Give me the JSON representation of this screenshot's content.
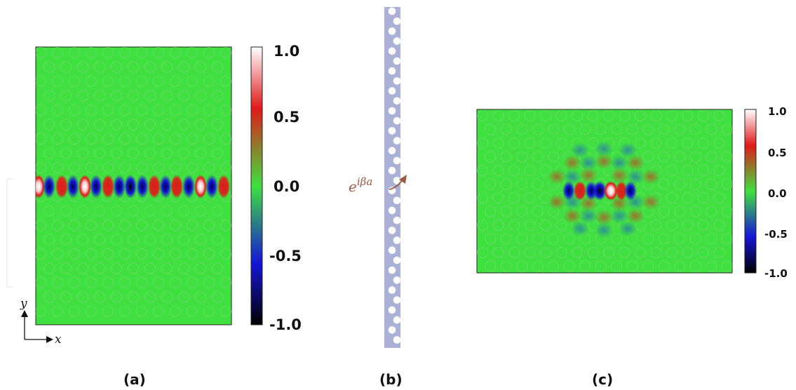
{
  "panels": {
    "a": {
      "label": "(a)",
      "axis_y": "y",
      "axis_x": "x",
      "colorbar_ticks": [
        "1.0",
        "0.5",
        "0.0",
        "-0.5",
        "-1.0"
      ]
    },
    "b": {
      "label": "(b)",
      "phase_base": "e",
      "phase_exp": "iβa"
    },
    "c": {
      "label": "(c)",
      "colorbar_ticks": [
        "1.0",
        "0.5",
        "0.0",
        "-0.5",
        "-1.0"
      ]
    }
  },
  "colors": {
    "background_field": "#3fe03f",
    "hole_outline": "#7fd87f",
    "colormap": [
      "#000000",
      "#1515d6",
      "#3fe03f",
      "#e01a1a",
      "#ffffff"
    ],
    "waveguide": "#aab0d6",
    "phase_arrow": "#9b5a46"
  }
}
